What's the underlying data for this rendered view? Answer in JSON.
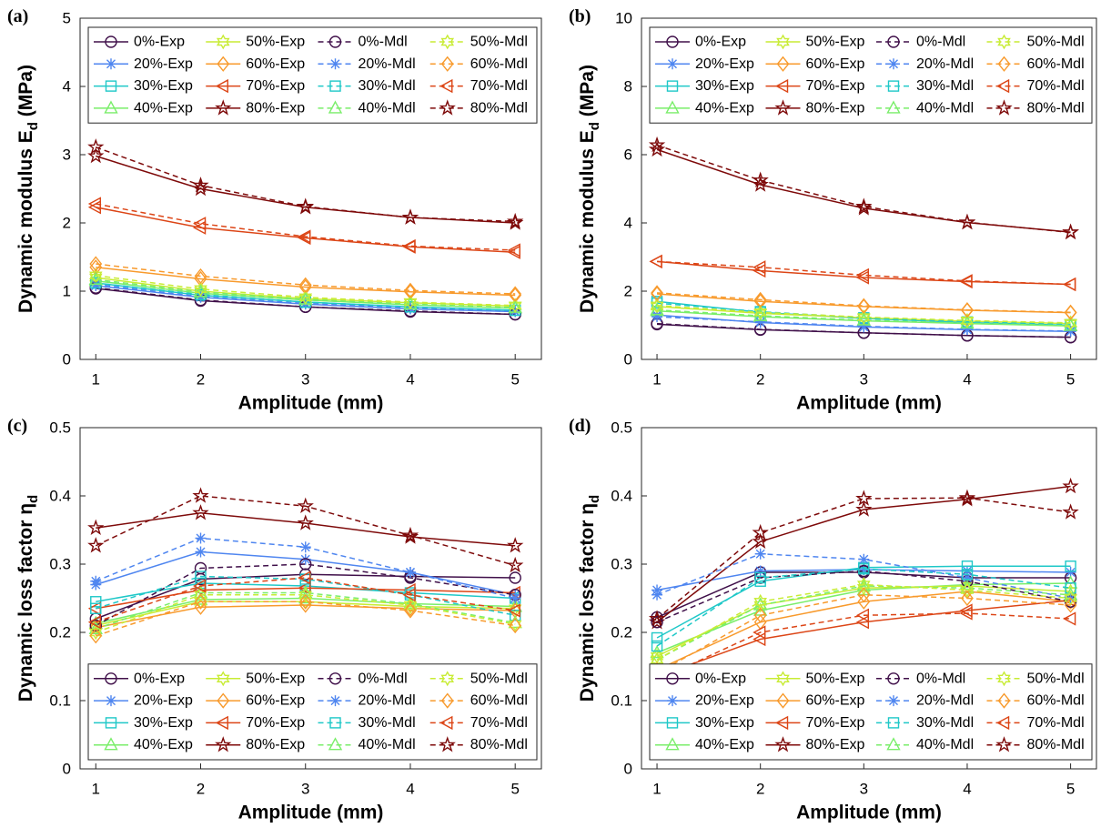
{
  "chart_data": [
    {
      "type": "line",
      "label": "(a)",
      "xlabel": "Amplitude (mm)",
      "ylabel": {
        "text": "Dynamic modulus E",
        "sub": "d",
        "tail": " (MPa)"
      },
      "x": [
        1,
        2,
        3,
        4,
        5
      ],
      "xlim": [
        0.85,
        5.25
      ],
      "xticks": [
        1,
        2,
        3,
        4,
        5
      ],
      "ylim": [
        0,
        5
      ],
      "yticks": [
        0,
        1,
        2,
        3,
        4,
        5
      ],
      "legend": "upper left",
      "series": [
        {
          "name": "0%-Exp",
          "color": "#40104a",
          "marker": "o",
          "dashed": false,
          "values": [
            1.04,
            0.86,
            0.77,
            0.7,
            0.66
          ]
        },
        {
          "name": "20%-Exp",
          "color": "#4f86f0",
          "marker": "*",
          "dashed": false,
          "values": [
            1.08,
            0.91,
            0.81,
            0.74,
            0.7
          ]
        },
        {
          "name": "30%-Exp",
          "color": "#1fc8c8",
          "marker": "s",
          "dashed": false,
          "values": [
            1.12,
            0.94,
            0.84,
            0.77,
            0.72
          ]
        },
        {
          "name": "40%-Exp",
          "color": "#7aee6a",
          "marker": "^",
          "dashed": false,
          "values": [
            1.15,
            0.97,
            0.87,
            0.8,
            0.75
          ]
        },
        {
          "name": "50%-Exp",
          "color": "#c8ec34",
          "marker": "h",
          "dashed": false,
          "values": [
            1.2,
            1.0,
            0.89,
            0.83,
            0.78
          ]
        },
        {
          "name": "60%-Exp",
          "color": "#f89a2c",
          "marker": "d",
          "dashed": false,
          "values": [
            1.35,
            1.18,
            1.06,
            0.99,
            0.94
          ]
        },
        {
          "name": "70%-Exp",
          "color": "#dc4516",
          "marker": "<",
          "dashed": false,
          "values": [
            2.23,
            1.93,
            1.78,
            1.65,
            1.57
          ]
        },
        {
          "name": "80%-Exp",
          "color": "#7e0a0a",
          "marker": "p",
          "dashed": false,
          "values": [
            2.98,
            2.5,
            2.23,
            2.08,
            2.0
          ]
        },
        {
          "name": "0%-Mdl",
          "color": "#40104a",
          "marker": "o",
          "dashed": true,
          "values": [
            1.05,
            0.87,
            0.77,
            0.71,
            0.66
          ]
        },
        {
          "name": "20%-Mdl",
          "color": "#4f86f0",
          "marker": "*",
          "dashed": true,
          "values": [
            1.1,
            0.92,
            0.82,
            0.75,
            0.7
          ]
        },
        {
          "name": "30%-Mdl",
          "color": "#1fc8c8",
          "marker": "s",
          "dashed": true,
          "values": [
            1.12,
            0.95,
            0.84,
            0.77,
            0.72
          ]
        },
        {
          "name": "40%-Mdl",
          "color": "#7aee6a",
          "marker": "^",
          "dashed": true,
          "values": [
            1.17,
            0.99,
            0.88,
            0.81,
            0.76
          ]
        },
        {
          "name": "50%-Mdl",
          "color": "#c8ec34",
          "marker": "h",
          "dashed": true,
          "values": [
            1.23,
            1.03,
            0.91,
            0.84,
            0.79
          ]
        },
        {
          "name": "60%-Mdl",
          "color": "#f89a2c",
          "marker": "d",
          "dashed": true,
          "values": [
            1.4,
            1.22,
            1.09,
            1.01,
            0.96
          ]
        },
        {
          "name": "70%-Mdl",
          "color": "#dc4516",
          "marker": "<",
          "dashed": true,
          "values": [
            2.28,
            1.99,
            1.8,
            1.66,
            1.6
          ]
        },
        {
          "name": "80%-Mdl",
          "color": "#7e0a0a",
          "marker": "p",
          "dashed": true,
          "values": [
            3.11,
            2.55,
            2.24,
            2.08,
            2.02
          ]
        }
      ]
    },
    {
      "type": "line",
      "label": "(b)",
      "xlabel": "Amplitude (mm)",
      "ylabel": {
        "text": "Dynamic modulus E",
        "sub": "d",
        "tail": " (MPa)"
      },
      "x": [
        1,
        2,
        3,
        4,
        5
      ],
      "xlim": [
        0.85,
        5.25
      ],
      "xticks": [
        1,
        2,
        3,
        4,
        5
      ],
      "ylim": [
        0,
        10
      ],
      "yticks": [
        0,
        2,
        4,
        6,
        8,
        10
      ],
      "legend": "upper left",
      "series": [
        {
          "name": "0%-Exp",
          "color": "#40104a",
          "marker": "o",
          "dashed": false,
          "values": [
            1.03,
            0.87,
            0.78,
            0.7,
            0.65
          ]
        },
        {
          "name": "20%-Exp",
          "color": "#4f86f0",
          "marker": "*",
          "dashed": false,
          "values": [
            1.3,
            1.08,
            0.95,
            0.87,
            0.82
          ]
        },
        {
          "name": "30%-Exp",
          "color": "#1fc8c8",
          "marker": "s",
          "dashed": false,
          "values": [
            1.7,
            1.38,
            1.2,
            1.08,
            1.0
          ]
        },
        {
          "name": "40%-Exp",
          "color": "#7aee6a",
          "marker": "^",
          "dashed": false,
          "values": [
            1.42,
            1.25,
            1.13,
            1.05,
            0.98
          ]
        },
        {
          "name": "50%-Exp",
          "color": "#c8ec34",
          "marker": "h",
          "dashed": false,
          "values": [
            1.55,
            1.35,
            1.22,
            1.12,
            1.05
          ]
        },
        {
          "name": "60%-Exp",
          "color": "#f89a2c",
          "marker": "d",
          "dashed": false,
          "values": [
            1.92,
            1.7,
            1.55,
            1.44,
            1.37
          ]
        },
        {
          "name": "70%-Exp",
          "color": "#dc4516",
          "marker": "<",
          "dashed": false,
          "values": [
            2.87,
            2.6,
            2.4,
            2.28,
            2.2
          ]
        },
        {
          "name": "80%-Exp",
          "color": "#7e0a0a",
          "marker": "p",
          "dashed": false,
          "values": [
            6.15,
            5.12,
            4.43,
            4.01,
            3.73
          ]
        },
        {
          "name": "0%-Mdl",
          "color": "#40104a",
          "marker": "o",
          "dashed": true,
          "values": [
            1.05,
            0.88,
            0.78,
            0.7,
            0.65
          ]
        },
        {
          "name": "20%-Mdl",
          "color": "#4f86f0",
          "marker": "*",
          "dashed": true,
          "values": [
            1.25,
            1.1,
            0.97,
            0.88,
            0.83
          ]
        },
        {
          "name": "30%-Mdl",
          "color": "#1fc8c8",
          "marker": "s",
          "dashed": true,
          "values": [
            1.65,
            1.4,
            1.22,
            1.1,
            1.02
          ]
        },
        {
          "name": "40%-Mdl",
          "color": "#7aee6a",
          "marker": "^",
          "dashed": true,
          "values": [
            1.45,
            1.28,
            1.15,
            1.06,
            0.99
          ]
        },
        {
          "name": "50%-Mdl",
          "color": "#c8ec34",
          "marker": "h",
          "dashed": true,
          "values": [
            1.58,
            1.38,
            1.24,
            1.14,
            1.07
          ]
        },
        {
          "name": "60%-Mdl",
          "color": "#f89a2c",
          "marker": "d",
          "dashed": true,
          "values": [
            1.95,
            1.75,
            1.57,
            1.45,
            1.38
          ]
        },
        {
          "name": "70%-Mdl",
          "color": "#dc4516",
          "marker": "<",
          "dashed": true,
          "values": [
            2.87,
            2.7,
            2.47,
            2.3,
            2.2
          ]
        },
        {
          "name": "80%-Mdl",
          "color": "#7e0a0a",
          "marker": "p",
          "dashed": true,
          "values": [
            6.28,
            5.25,
            4.48,
            4.02,
            3.72
          ]
        }
      ]
    },
    {
      "type": "line",
      "label": "(c)",
      "xlabel": "Amplitude (mm)",
      "ylabel": {
        "text": "Dynamic loss factor η",
        "sub": "d"
      },
      "x": [
        1,
        2,
        3,
        4,
        5
      ],
      "xlim": [
        0.85,
        5.25
      ],
      "xticks": [
        1,
        2,
        3,
        4,
        5
      ],
      "ylim": [
        0,
        0.5
      ],
      "yticks": [
        0,
        0.1,
        0.2,
        0.3,
        0.4,
        0.5
      ],
      "legend": "lower left",
      "series": [
        {
          "name": "0%-Exp",
          "color": "#40104a",
          "marker": "o",
          "dashed": false,
          "values": [
            0.22,
            0.278,
            0.285,
            0.282,
            0.28
          ]
        },
        {
          "name": "20%-Exp",
          "color": "#4f86f0",
          "marker": "*",
          "dashed": false,
          "values": [
            0.27,
            0.318,
            0.307,
            0.288,
            0.255
          ]
        },
        {
          "name": "30%-Exp",
          "color": "#1fc8c8",
          "marker": "s",
          "dashed": false,
          "values": [
            0.245,
            0.272,
            0.268,
            0.258,
            0.25
          ]
        },
        {
          "name": "40%-Exp",
          "color": "#7aee6a",
          "marker": "^",
          "dashed": false,
          "values": [
            0.213,
            0.248,
            0.25,
            0.242,
            0.238
          ]
        },
        {
          "name": "50%-Exp",
          "color": "#c8ec34",
          "marker": "h",
          "dashed": false,
          "values": [
            0.21,
            0.245,
            0.245,
            0.238,
            0.235
          ]
        },
        {
          "name": "60%-Exp",
          "color": "#f89a2c",
          "marker": "d",
          "dashed": false,
          "values": [
            0.207,
            0.237,
            0.24,
            0.235,
            0.232
          ]
        },
        {
          "name": "70%-Exp",
          "color": "#dc4516",
          "marker": "<",
          "dashed": false,
          "values": [
            0.235,
            0.262,
            0.265,
            0.262,
            0.258
          ]
        },
        {
          "name": "80%-Exp",
          "color": "#7e0a0a",
          "marker": "p",
          "dashed": false,
          "values": [
            0.353,
            0.375,
            0.36,
            0.34,
            0.327
          ]
        },
        {
          "name": "0%-Mdl",
          "color": "#40104a",
          "marker": "o",
          "dashed": true,
          "values": [
            0.21,
            0.294,
            0.3,
            0.28,
            0.255
          ]
        },
        {
          "name": "20%-Mdl",
          "color": "#4f86f0",
          "marker": "*",
          "dashed": true,
          "values": [
            0.275,
            0.338,
            0.325,
            0.288,
            0.25
          ]
        },
        {
          "name": "30%-Mdl",
          "color": "#1fc8c8",
          "marker": "s",
          "dashed": true,
          "values": [
            0.235,
            0.282,
            0.278,
            0.255,
            0.225
          ]
        },
        {
          "name": "40%-Mdl",
          "color": "#7aee6a",
          "marker": "^",
          "dashed": true,
          "values": [
            0.205,
            0.258,
            0.258,
            0.242,
            0.214
          ]
        },
        {
          "name": "50%-Mdl",
          "color": "#c8ec34",
          "marker": "h",
          "dashed": true,
          "values": [
            0.2,
            0.255,
            0.255,
            0.24,
            0.212
          ]
        },
        {
          "name": "60%-Mdl",
          "color": "#f89a2c",
          "marker": "d",
          "dashed": true,
          "values": [
            0.195,
            0.245,
            0.245,
            0.232,
            0.21
          ]
        },
        {
          "name": "70%-Mdl",
          "color": "#dc4516",
          "marker": "<",
          "dashed": true,
          "values": [
            0.215,
            0.268,
            0.28,
            0.255,
            0.232
          ]
        },
        {
          "name": "80%-Mdl",
          "color": "#7e0a0a",
          "marker": "p",
          "dashed": true,
          "values": [
            0.327,
            0.4,
            0.385,
            0.342,
            0.298
          ]
        }
      ]
    },
    {
      "type": "line",
      "label": "(d)",
      "xlabel": "Amplitude (mm)",
      "ylabel": {
        "text": "Dynamic loss factor η",
        "sub": "d"
      },
      "x": [
        1,
        2,
        3,
        4,
        5
      ],
      "xlim": [
        0.85,
        5.25
      ],
      "xticks": [
        1,
        2,
        3,
        4,
        5
      ],
      "ylim": [
        0,
        0.5
      ],
      "yticks": [
        0,
        0.1,
        0.2,
        0.3,
        0.4,
        0.5
      ],
      "legend": "lower left",
      "series": [
        {
          "name": "0%-Exp",
          "color": "#40104a",
          "marker": "o",
          "dashed": false,
          "values": [
            0.222,
            0.288,
            0.288,
            0.28,
            0.28
          ]
        },
        {
          "name": "20%-Exp",
          "color": "#4f86f0",
          "marker": "*",
          "dashed": false,
          "values": [
            0.262,
            0.29,
            0.292,
            0.29,
            0.288
          ]
        },
        {
          "name": "30%-Exp",
          "color": "#1fc8c8",
          "marker": "s",
          "dashed": false,
          "values": [
            0.192,
            0.275,
            0.295,
            0.297,
            0.297
          ]
        },
        {
          "name": "40%-Exp",
          "color": "#7aee6a",
          "marker": "^",
          "dashed": false,
          "values": [
            0.17,
            0.232,
            0.262,
            0.27,
            0.272
          ]
        },
        {
          "name": "50%-Exp",
          "color": "#c8ec34",
          "marker": "h",
          "dashed": false,
          "values": [
            0.165,
            0.24,
            0.265,
            0.268,
            0.26
          ]
        },
        {
          "name": "60%-Exp",
          "color": "#f89a2c",
          "marker": "d",
          "dashed": false,
          "values": [
            0.145,
            0.215,
            0.245,
            0.26,
            0.245
          ]
        },
        {
          "name": "70%-Exp",
          "color": "#dc4516",
          "marker": "<",
          "dashed": false,
          "values": [
            0.135,
            0.19,
            0.215,
            0.232,
            0.247
          ]
        },
        {
          "name": "80%-Exp",
          "color": "#7e0a0a",
          "marker": "p",
          "dashed": false,
          "values": [
            0.215,
            0.333,
            0.38,
            0.395,
            0.414
          ]
        },
        {
          "name": "0%-Mdl",
          "color": "#40104a",
          "marker": "o",
          "dashed": true,
          "values": [
            0.215,
            0.28,
            0.29,
            0.275,
            0.245
          ]
        },
        {
          "name": "20%-Mdl",
          "color": "#4f86f0",
          "marker": "*",
          "dashed": true,
          "values": [
            0.255,
            0.315,
            0.307,
            0.28,
            0.25
          ]
        },
        {
          "name": "30%-Mdl",
          "color": "#1fc8c8",
          "marker": "s",
          "dashed": true,
          "values": [
            0.18,
            0.28,
            0.293,
            0.285,
            0.265
          ]
        },
        {
          "name": "40%-Mdl",
          "color": "#7aee6a",
          "marker": "^",
          "dashed": true,
          "values": [
            0.16,
            0.24,
            0.268,
            0.265,
            0.255
          ]
        },
        {
          "name": "50%-Mdl",
          "color": "#c8ec34",
          "marker": "h",
          "dashed": true,
          "values": [
            0.16,
            0.245,
            0.27,
            0.262,
            0.25
          ]
        },
        {
          "name": "60%-Mdl",
          "color": "#f89a2c",
          "marker": "d",
          "dashed": true,
          "values": [
            0.14,
            0.225,
            0.255,
            0.25,
            0.24
          ]
        },
        {
          "name": "70%-Mdl",
          "color": "#dc4516",
          "marker": "<",
          "dashed": true,
          "values": [
            0.13,
            0.2,
            0.225,
            0.228,
            0.22
          ]
        },
        {
          "name": "80%-Mdl",
          "color": "#7e0a0a",
          "marker": "p",
          "dashed": true,
          "values": [
            0.22,
            0.346,
            0.396,
            0.397,
            0.376
          ]
        }
      ]
    }
  ]
}
